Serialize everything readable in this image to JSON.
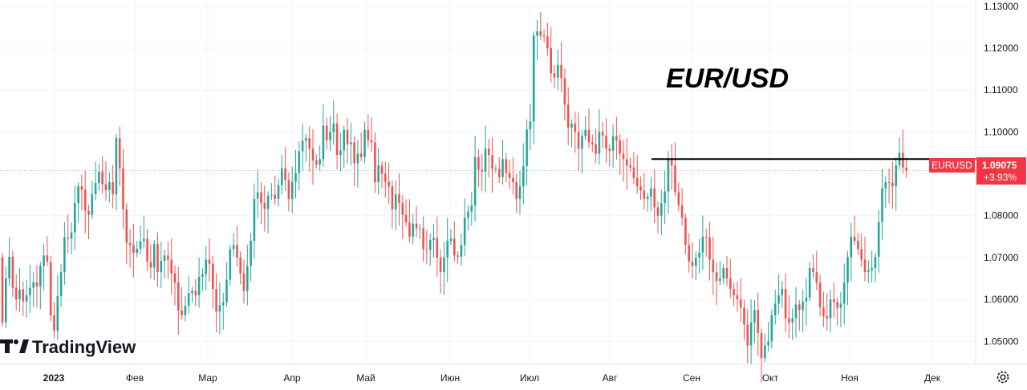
{
  "chart_data": {
    "type": "candlestick",
    "title": "EUR/USD",
    "symbol": "EURUSD",
    "last_price": "1.09075",
    "change": "+3.93%",
    "resistance_level": 1.0935,
    "ylim": [
      1.0445,
      1.1315
    ],
    "y_ticks": [
      "1.13000",
      "1.12000",
      "1.11000",
      "1.10000",
      "1.09000",
      "1.08000",
      "1.07000",
      "1.06000",
      "1.05000"
    ],
    "x_ticks": [
      "2023",
      "Фев",
      "Мар",
      "Апр",
      "Май",
      "Июн",
      "Июл",
      "Авг",
      "Сен",
      "Окт",
      "Ноя",
      "Дек"
    ],
    "gridlines": true,
    "colors": {
      "up": "#26a69a",
      "down": "#ef5350",
      "last_price_label": "#f23645",
      "level_line": "#000000"
    },
    "closes": [
      1.0545,
      1.065,
      1.0702,
      1.0628,
      1.06,
      1.0624,
      1.0595,
      1.061,
      1.0628,
      1.0641,
      1.0631,
      1.068,
      1.0705,
      1.069,
      1.0562,
      1.0525,
      1.0608,
      1.0665,
      1.0748,
      1.0745,
      1.076,
      1.083,
      1.087,
      1.0862,
      1.0812,
      1.0802,
      1.0851,
      1.0878,
      1.0905,
      1.0875,
      1.0861,
      1.088,
      1.0851,
      1.0985,
      1.0913,
      1.0815,
      1.0735,
      1.073,
      1.0711,
      1.0721,
      1.0739,
      1.0745,
      1.069,
      1.0676,
      1.0732,
      1.0665,
      1.0692,
      1.0705,
      1.0695,
      1.0662,
      1.064,
      1.0574,
      1.0562,
      1.0585,
      1.0615,
      1.062,
      1.061,
      1.0654,
      1.066,
      1.0695,
      1.0685,
      1.0625,
      1.0571,
      1.0586,
      1.0593,
      1.0647,
      1.072,
      1.073,
      1.07,
      1.0662,
      1.062,
      1.068,
      1.074,
      1.084,
      1.0856,
      1.083,
      1.0816,
      1.0848,
      1.085,
      1.084,
      1.0873,
      1.0913,
      1.0885,
      1.084,
      1.088,
      1.0902,
      1.0954,
      1.0979,
      1.0985,
      1.096,
      1.0932,
      1.0922,
      1.0935,
      1.1015,
      1.098,
      1.1,
      1.102,
      1.0945,
      1.0956,
      1.1005,
      1.097,
      1.0975,
      1.0925,
      1.0948,
      1.094,
      1.1005,
      1.098,
      1.0975,
      1.088,
      1.092,
      1.09,
      1.0881,
      1.087,
      1.0815,
      1.0851,
      1.083,
      1.0802,
      1.0784,
      1.075,
      1.0781,
      1.077,
      1.077,
      1.072,
      1.0718,
      1.0742,
      1.0747,
      1.07,
      1.0665,
      1.07,
      1.074,
      1.0745,
      1.0705,
      1.0702,
      1.073,
      1.0795,
      1.081,
      1.0824,
      1.094,
      1.091,
      1.0905,
      1.096,
      1.0945,
      1.0912,
      1.0912,
      1.0892,
      1.0935,
      1.0902,
      1.089,
      1.088,
      1.084,
      1.087,
      1.0918,
      1.1006,
      1.1025,
      1.123,
      1.124,
      1.123,
      1.1228,
      1.12,
      1.114,
      1.113,
      1.116,
      1.1128,
      1.1065,
      1.101,
      1.102,
      1.1,
      1.096,
      1.099,
      1.1005,
      1.0975,
      1.097,
      1.0948,
      1.1,
      1.0991,
      1.096,
      1.0955,
      1.099,
      1.098,
      1.0948,
      1.0935,
      1.092,
      1.0915,
      1.089,
      1.087,
      1.086,
      1.084,
      1.0845,
      1.0865,
      1.082,
      1.08,
      1.083,
      1.0858,
      1.0935,
      1.092,
      1.0856,
      1.0825,
      1.0795,
      1.073,
      1.069,
      1.068,
      1.07,
      1.0712,
      1.075,
      1.0748,
      1.0695,
      1.0665,
      1.0644,
      1.065,
      1.0675,
      1.065,
      1.0625,
      1.061,
      1.06,
      1.058,
      1.054,
      1.049,
      1.0545,
      1.0575,
      1.052,
      1.046,
      1.049,
      1.05,
      1.0562,
      1.059,
      1.061,
      1.0625,
      1.0555,
      1.0545,
      1.0555,
      1.0588,
      1.0575,
      1.0595,
      1.0605,
      1.0675,
      1.0665,
      1.064,
      1.0581,
      1.056,
      1.0555,
      1.06,
      1.0594,
      1.058,
      1.059,
      1.064,
      1.0701,
      1.075,
      1.074,
      1.072,
      1.0695,
      1.0665,
      1.067,
      1.0675,
      1.0702,
      1.0785,
      1.0865,
      1.088,
      1.0879,
      1.087,
      1.092,
      1.095,
      1.0915,
      1.0908
    ]
  },
  "time_axis": {
    "settings_icon": "gear-icon"
  },
  "branding": {
    "logo_text": "TradingView",
    "logo_icon": "tradingview-logo-icon"
  }
}
